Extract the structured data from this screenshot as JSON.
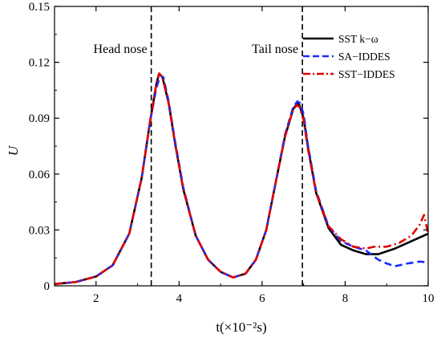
{
  "chart_data": {
    "type": "line",
    "xlabel": "t(×10⁻²s)",
    "ylabel": "U",
    "xlim": [
      1,
      10
    ],
    "ylim": [
      0,
      0.15
    ],
    "xticks": [
      "2",
      "4",
      "6",
      "8",
      "10"
    ],
    "yticks": [
      "0",
      "0.03",
      "0.06",
      "0.09",
      "0.12",
      "0.15"
    ],
    "legend_position": "top-right",
    "grid": false,
    "annotations": [
      {
        "text": "Head nose",
        "x": 3.33
      },
      {
        "text": "Tail nose",
        "x": 6.97
      }
    ],
    "series": [
      {
        "name": "SST k−ω",
        "color": "#000000",
        "style": "solid",
        "x": [
          1.0,
          1.5,
          2.0,
          2.4,
          2.8,
          3.1,
          3.3,
          3.45,
          3.52,
          3.6,
          3.75,
          3.9,
          4.1,
          4.4,
          4.7,
          5.0,
          5.3,
          5.6,
          5.85,
          6.1,
          6.35,
          6.55,
          6.75,
          6.85,
          6.9,
          7.0,
          7.1,
          7.3,
          7.6,
          7.9,
          8.2,
          8.5,
          8.8,
          9.2,
          9.6,
          10.0
        ],
        "y": [
          0.001,
          0.002,
          0.005,
          0.011,
          0.028,
          0.058,
          0.088,
          0.108,
          0.114,
          0.112,
          0.098,
          0.077,
          0.052,
          0.027,
          0.014,
          0.0075,
          0.0045,
          0.0065,
          0.014,
          0.03,
          0.058,
          0.08,
          0.095,
          0.098,
          0.097,
          0.09,
          0.075,
          0.05,
          0.031,
          0.022,
          0.019,
          0.017,
          0.017,
          0.02,
          0.024,
          0.028
        ]
      },
      {
        "name": "SA−IDDES",
        "color": "#1a2bff",
        "style": "dashed",
        "x": [
          1.0,
          1.5,
          2.0,
          2.4,
          2.8,
          3.1,
          3.3,
          3.45,
          3.55,
          3.62,
          3.75,
          3.9,
          4.1,
          4.4,
          4.7,
          5.0,
          5.3,
          5.6,
          5.85,
          6.1,
          6.35,
          6.55,
          6.75,
          6.85,
          6.92,
          7.0,
          7.1,
          7.3,
          7.6,
          7.9,
          8.2,
          8.5,
          8.8,
          9.0,
          9.2,
          9.5,
          9.8,
          10.0
        ],
        "y": [
          0.001,
          0.002,
          0.005,
          0.011,
          0.028,
          0.058,
          0.088,
          0.106,
          0.113,
          0.112,
          0.099,
          0.078,
          0.053,
          0.027,
          0.014,
          0.0075,
          0.0045,
          0.0065,
          0.014,
          0.03,
          0.058,
          0.081,
          0.096,
          0.099,
          0.098,
          0.092,
          0.076,
          0.051,
          0.032,
          0.024,
          0.021,
          0.019,
          0.014,
          0.012,
          0.0105,
          0.012,
          0.013,
          0.0125
        ]
      },
      {
        "name": "SST−IDDES",
        "color": "#e00000",
        "style": "dash-dot",
        "x": [
          1.0,
          1.5,
          2.0,
          2.4,
          2.8,
          3.1,
          3.3,
          3.45,
          3.52,
          3.6,
          3.75,
          3.9,
          4.1,
          4.4,
          4.7,
          5.0,
          5.3,
          5.6,
          5.85,
          6.1,
          6.35,
          6.55,
          6.75,
          6.85,
          6.9,
          7.0,
          7.1,
          7.3,
          7.6,
          7.9,
          8.2,
          8.5,
          8.7,
          9.0,
          9.3,
          9.6,
          9.8,
          9.9,
          10.0
        ],
        "y": [
          0.001,
          0.002,
          0.005,
          0.011,
          0.028,
          0.058,
          0.088,
          0.108,
          0.114,
          0.112,
          0.098,
          0.077,
          0.052,
          0.027,
          0.014,
          0.0075,
          0.0045,
          0.0065,
          0.014,
          0.03,
          0.058,
          0.08,
          0.095,
          0.097,
          0.096,
          0.089,
          0.074,
          0.05,
          0.032,
          0.025,
          0.021,
          0.02,
          0.021,
          0.021,
          0.023,
          0.027,
          0.033,
          0.038,
          0.028
        ]
      }
    ]
  }
}
